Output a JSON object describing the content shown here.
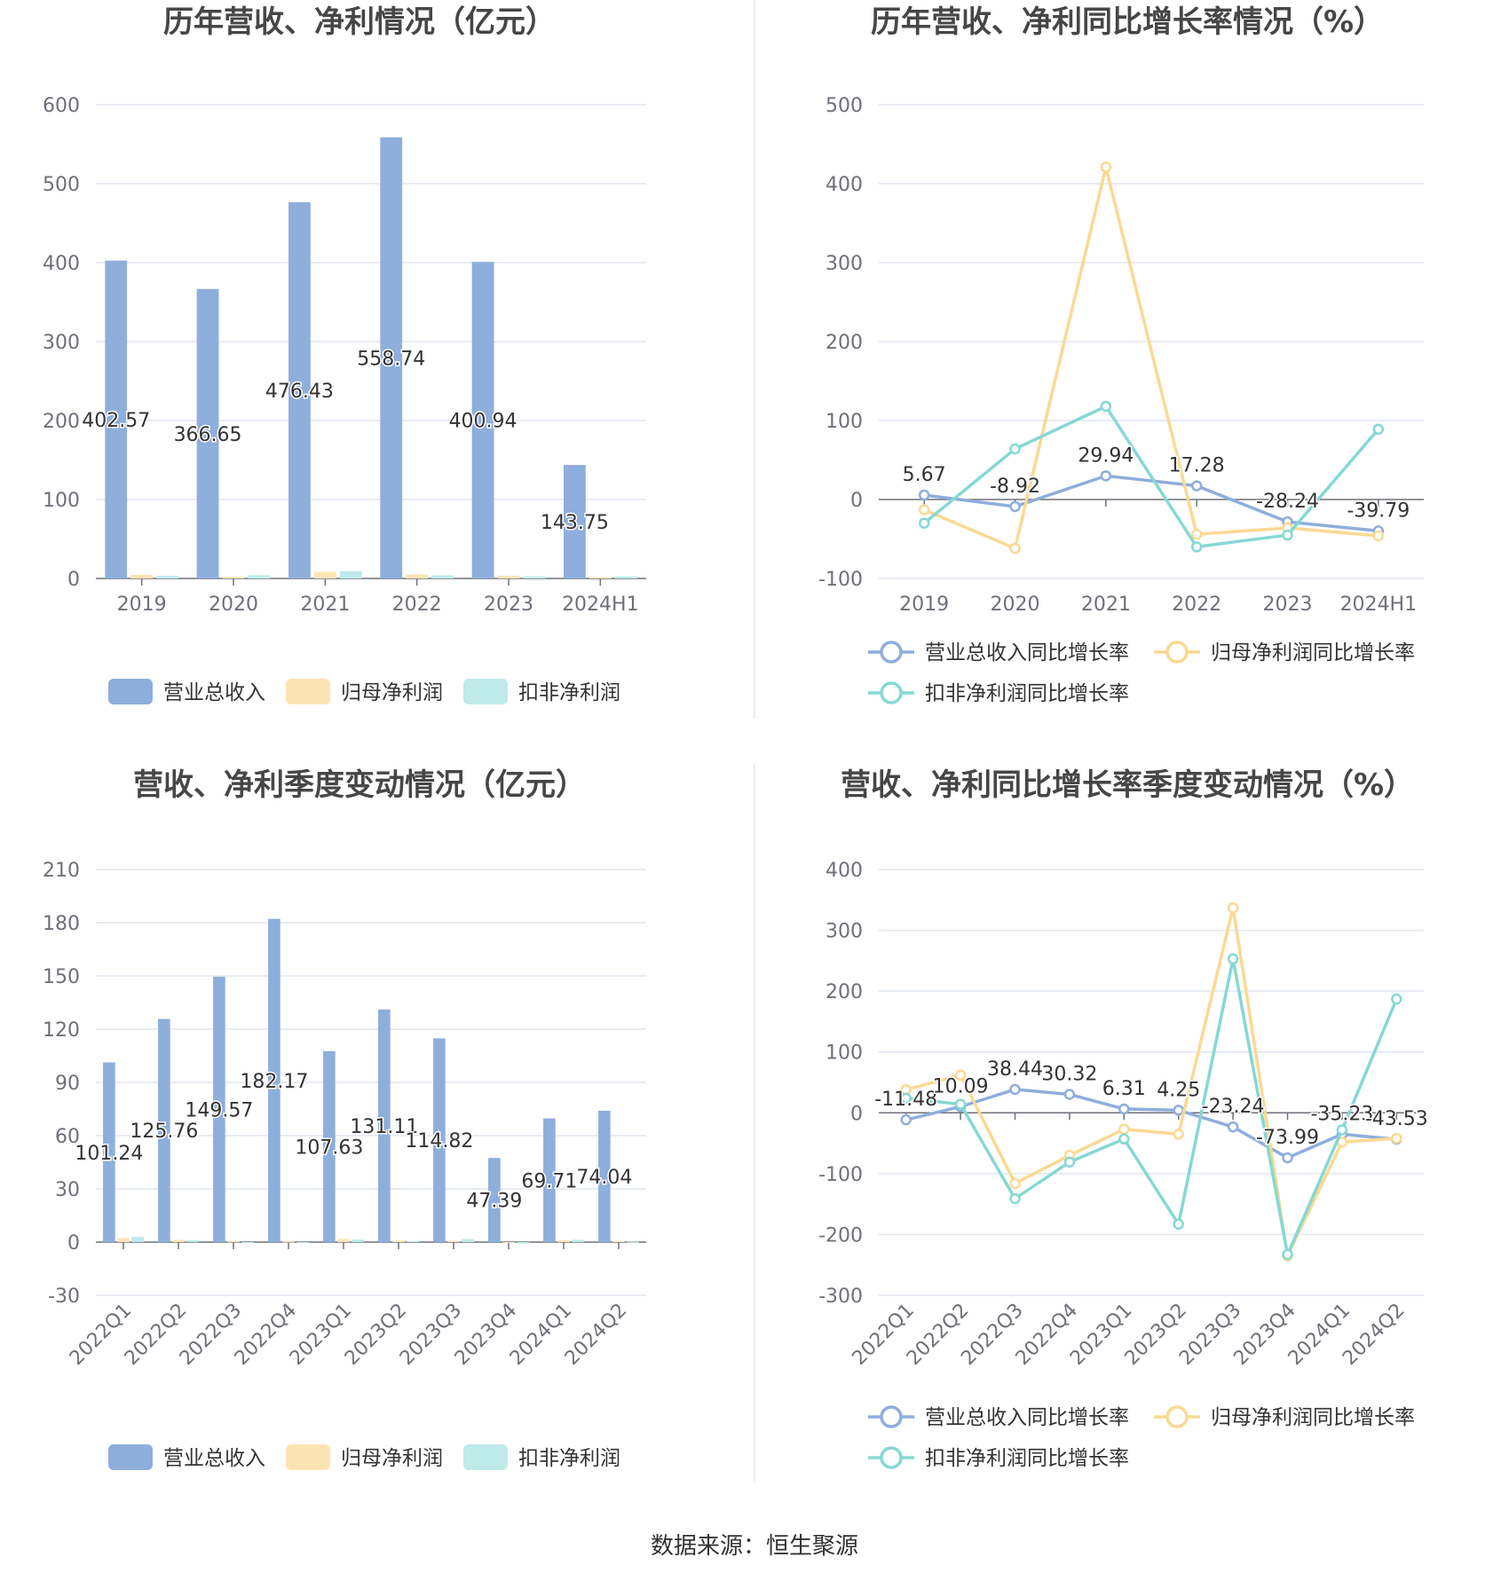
{
  "source_text": "数据来源：恒生聚源",
  "colors": {
    "revenue": "#8eaedc",
    "net_profit": "#fde4b4",
    "deducted_profit": "#bfeaea",
    "revenue_line": "#8eaedc",
    "net_profit_line": "#fbd992",
    "deducted_profit_line": "#86d8d3"
  },
  "chart_data": [
    {
      "id": "annual-values",
      "type": "bar",
      "title": "历年营收、净利情况（亿元）",
      "categories": [
        "2019",
        "2020",
        "2021",
        "2022",
        "2023",
        "2024H1"
      ],
      "ylim": [
        0,
        600
      ],
      "yticks": [
        0,
        100,
        200,
        300,
        400,
        500,
        600
      ],
      "series": [
        {
          "name": "营业总收入",
          "color": "#8eaedc",
          "values": [
            402.57,
            366.65,
            476.43,
            558.74,
            400.94,
            143.75
          ],
          "labels": [
            "402.57",
            "366.65",
            "476.43",
            "558.74",
            "400.94",
            "143.75"
          ]
        },
        {
          "name": "归母净利润",
          "color": "#fde4b4",
          "values": [
            4.5,
            2.2,
            8.6,
            5.1,
            3.4,
            1.6
          ]
        },
        {
          "name": "扣非净利润",
          "color": "#bfeaea",
          "values": [
            3.2,
            4.1,
            9.2,
            3.9,
            2.8,
            2.6
          ]
        }
      ]
    },
    {
      "id": "annual-growth",
      "type": "line",
      "title": "历年营收、净利同比增长率情况（%）",
      "categories": [
        "2019",
        "2020",
        "2021",
        "2022",
        "2023",
        "2024H1"
      ],
      "ylim": [
        -100,
        500
      ],
      "yticks": [
        -100,
        0,
        100,
        200,
        300,
        400,
        500
      ],
      "series": [
        {
          "name": "营业总收入同比增长率",
          "color": "#8eaedc",
          "values": [
            5.67,
            -8.92,
            29.94,
            17.28,
            -28.24,
            -39.79
          ],
          "labels": [
            "5.67",
            "-8.92",
            "29.94",
            "17.28",
            "-28.24",
            "-39.79"
          ]
        },
        {
          "name": "归母净利润同比增长率",
          "color": "#fbd992",
          "values": [
            -13,
            -62,
            421,
            -44,
            -36,
            -46
          ]
        },
        {
          "name": "扣非净利润同比增长率",
          "color": "#86d8d3",
          "values": [
            -30,
            64,
            118,
            -60,
            -45,
            89
          ]
        }
      ]
    },
    {
      "id": "quarterly-values",
      "type": "bar",
      "title": "营收、净利季度变动情况（亿元）",
      "categories": [
        "2022Q1",
        "2022Q2",
        "2022Q3",
        "2022Q4",
        "2023Q1",
        "2023Q2",
        "2023Q3",
        "2023Q4",
        "2024Q1",
        "2024Q2"
      ],
      "ylim": [
        -30,
        210
      ],
      "yticks": [
        -30,
        0,
        30,
        60,
        90,
        120,
        150,
        180,
        210
      ],
      "series": [
        {
          "name": "营业总收入",
          "color": "#8eaedc",
          "values": [
            101.24,
            125.76,
            149.57,
            182.17,
            107.63,
            131.11,
            114.82,
            47.39,
            69.71,
            74.04
          ],
          "labels": [
            "101.24",
            "125.76",
            "149.57",
            "182.17",
            "107.63",
            "131.11",
            "114.82",
            "47.39",
            "69.71",
            "74.04"
          ]
        },
        {
          "name": "归母净利润",
          "color": "#fde4b4",
          "values": [
            2.3,
            1.3,
            0.4,
            0.3,
            1.8,
            0.9,
            0.7,
            -0.4,
            1.0,
            0.6
          ]
        },
        {
          "name": "扣非净利润",
          "color": "#bfeaea",
          "values": [
            2.9,
            1.1,
            -0.3,
            -0.4,
            1.5,
            0.6,
            1.7,
            -0.9,
            1.3,
            0.2
          ]
        }
      ]
    },
    {
      "id": "quarterly-growth",
      "type": "line",
      "title": "营收、净利同比增长率季度变动情况（%）",
      "categories": [
        "2022Q1",
        "2022Q2",
        "2022Q3",
        "2022Q4",
        "2023Q1",
        "2023Q2",
        "2023Q3",
        "2023Q4",
        "2024Q1",
        "2024Q2"
      ],
      "ylim": [
        -300,
        400
      ],
      "yticks": [
        -300,
        -200,
        -100,
        0,
        100,
        200,
        300,
        400
      ],
      "series": [
        {
          "name": "营业总收入同比增长率",
          "color": "#8eaedc",
          "values": [
            -11.48,
            10.09,
            38.44,
            30.32,
            6.31,
            4.25,
            -23.24,
            -73.99,
            -35.23,
            -43.53
          ],
          "labels": [
            "-11.48",
            "10.09",
            "38.44",
            "30.32",
            "6.31",
            "4.25",
            "-23.24",
            "-73.99",
            "-35.23",
            "-43.53"
          ]
        },
        {
          "name": "归母净利润同比增长率",
          "color": "#fbd992",
          "values": [
            38,
            62,
            -116,
            -70,
            -27,
            -35,
            337,
            -235,
            -48,
            -42
          ]
        },
        {
          "name": "扣非净利润同比增长率",
          "color": "#86d8d3",
          "values": [
            24,
            14,
            -141,
            -81,
            -43,
            -183,
            253,
            -233,
            -28,
            187
          ]
        }
      ]
    }
  ]
}
